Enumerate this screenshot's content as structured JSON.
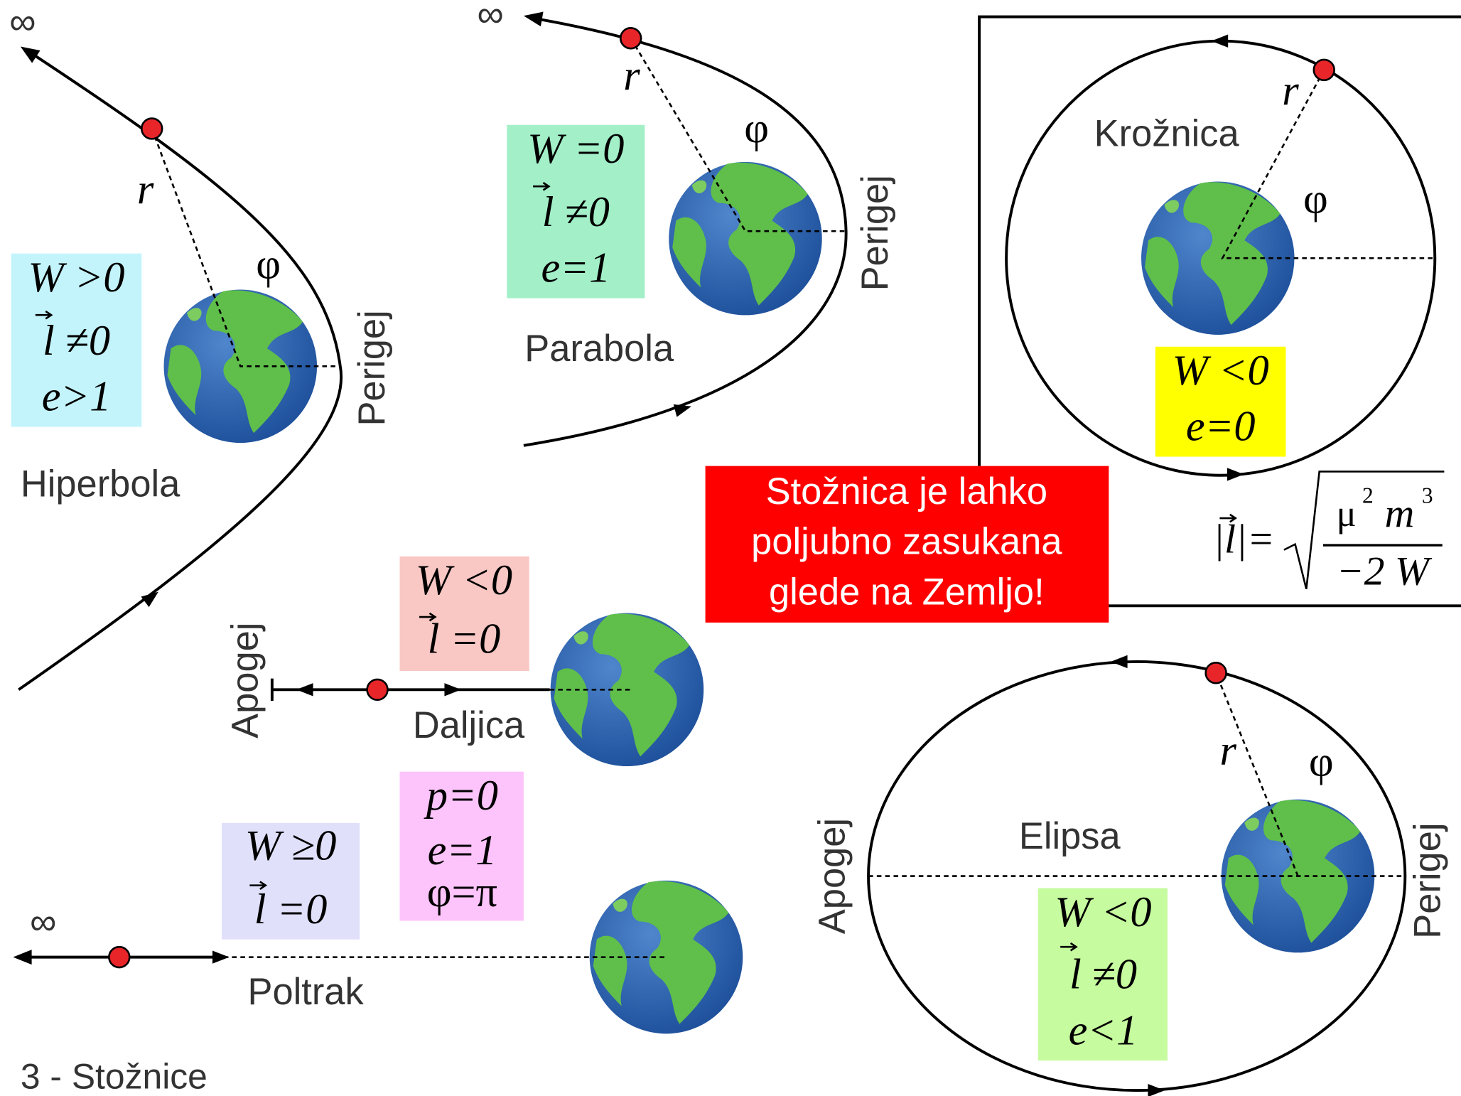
{
  "title": "3 - Stožnice",
  "notice": [
    "Stožnica je lahko",
    "poljubno zasukana",
    "glede na Zemljo!"
  ],
  "hyperbola": {
    "name": "Hiperbola",
    "infinity": "∞",
    "radius": "r",
    "angle": "φ",
    "perigee": "Perigej",
    "conditions": [
      "W >0",
      "l ≠0",
      "e>1"
    ]
  },
  "parabola": {
    "name": "Parabola",
    "infinity": "∞",
    "radius": "r",
    "angle": "φ",
    "perigee": "Perigej",
    "conditions": [
      "W =0",
      "l ≠0",
      "e=1"
    ]
  },
  "circle": {
    "name": "Krožnica",
    "radius": "r",
    "angle": "φ",
    "conditions": [
      "W <0",
      "e=0"
    ]
  },
  "formula": {
    "lhs": "|l|=",
    "mu": "μ",
    "mu_exp": "2",
    "m": "m",
    "m_exp": "3",
    "denominator": "−2 W"
  },
  "segment": {
    "name": "Daljica",
    "apogee": "Apogej",
    "conditions": [
      "W <0",
      "l =0"
    ]
  },
  "degenerate": {
    "conditions": [
      "p=0",
      "e=1",
      "φ=π"
    ]
  },
  "ray": {
    "name": "Poltrak",
    "infinity": "∞",
    "conditions": [
      "W ≥0",
      "l =0"
    ]
  },
  "ellipse": {
    "name": "Elipsa",
    "radius": "r",
    "angle": "φ",
    "apogee": "Apogej",
    "perigee": "Perigej",
    "conditions": [
      "W <0",
      "l ≠0",
      "e<1"
    ]
  }
}
